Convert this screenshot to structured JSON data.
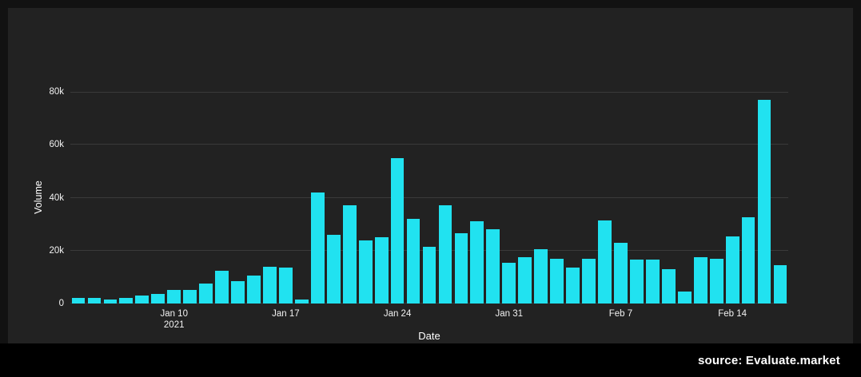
{
  "source_label": "source: Evaluate.market",
  "chart_data": {
    "type": "bar",
    "title": "",
    "xlabel": "Date",
    "ylabel": "Volume",
    "legend": null,
    "grid": true,
    "background": "#222222",
    "bar_color": "#21e2f0",
    "grid_color": "#3a3a3a",
    "ylim": [
      0,
      80000
    ],
    "yticks": [
      {
        "value": 0,
        "label": "0"
      },
      {
        "value": 20000,
        "label": "20k"
      },
      {
        "value": 40000,
        "label": "40k"
      },
      {
        "value": 60000,
        "label": "60k"
      },
      {
        "value": 80000,
        "label": "80k"
      }
    ],
    "x": [
      "Jan 4",
      "Jan 5",
      "Jan 6",
      "Jan 7",
      "Jan 8",
      "Jan 9",
      "Jan 10",
      "Jan 11",
      "Jan 12",
      "Jan 13",
      "Jan 14",
      "Jan 15",
      "Jan 16",
      "Jan 17",
      "Jan 18",
      "Jan 19",
      "Jan 20",
      "Jan 21",
      "Jan 22",
      "Jan 23",
      "Jan 24",
      "Jan 25",
      "Jan 26",
      "Jan 27",
      "Jan 28",
      "Jan 29",
      "Jan 30",
      "Jan 31",
      "Feb 1",
      "Feb 2",
      "Feb 3",
      "Feb 4",
      "Feb 5",
      "Feb 6",
      "Feb 7",
      "Feb 8",
      "Feb 9",
      "Feb 10",
      "Feb 11",
      "Feb 12",
      "Feb 13",
      "Feb 14",
      "Feb 15",
      "Feb 16",
      "Feb 17"
    ],
    "values": [
      2000,
      2000,
      1500,
      2000,
      3000,
      3500,
      5000,
      5000,
      7500,
      12500,
      8500,
      10500,
      14000,
      13500,
      1500,
      42000,
      26000,
      37000,
      24000,
      25000,
      55000,
      32000,
      21500,
      37000,
      26500,
      31000,
      28000,
      15500,
      17500,
      20500,
      17000,
      13500,
      17000,
      31500,
      23000,
      16500,
      16500,
      13000,
      4500,
      17500,
      17000,
      25500,
      32500,
      77000,
      14500
    ],
    "xticks": [
      {
        "index": 6,
        "lines": [
          "Jan 10",
          "2021"
        ]
      },
      {
        "index": 13,
        "lines": [
          "Jan 17"
        ]
      },
      {
        "index": 20,
        "lines": [
          "Jan 24"
        ]
      },
      {
        "index": 27,
        "lines": [
          "Jan 31"
        ]
      },
      {
        "index": 34,
        "lines": [
          "Feb 7"
        ]
      },
      {
        "index": 41,
        "lines": [
          "Feb 14"
        ]
      }
    ]
  }
}
